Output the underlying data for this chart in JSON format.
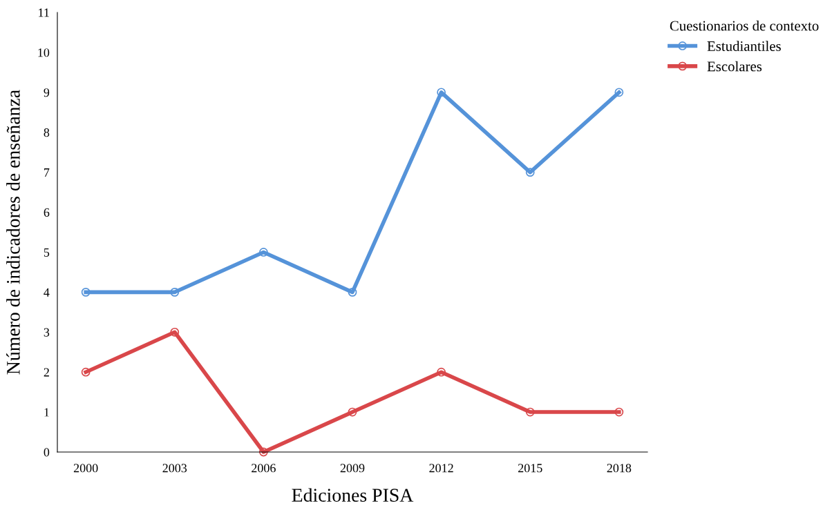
{
  "chart_data": {
    "type": "line",
    "xlabel": "Ediciones PISA",
    "ylabel": "Número de indicadores de enseñanza",
    "legend_title": "Cuestionarios de contexto",
    "legend": "top right",
    "categories": [
      "2000",
      "2003",
      "2006",
      "2009",
      "2012",
      "2015",
      "2018"
    ],
    "series": [
      {
        "name": "Estudiantiles",
        "color": "#5593d9",
        "values": [
          4,
          4,
          5,
          4,
          9,
          7,
          9
        ]
      },
      {
        "name": "Escolares",
        "color": "#d9474a",
        "values": [
          2,
          3,
          0,
          1,
          2,
          1,
          1
        ]
      }
    ],
    "ylim": [
      0,
      11
    ],
    "yticks": [
      0,
      1,
      2,
      3,
      4,
      5,
      6,
      7,
      8,
      9,
      10,
      11
    ],
    "grid": false,
    "marker": "circle",
    "line_style": "solid"
  }
}
